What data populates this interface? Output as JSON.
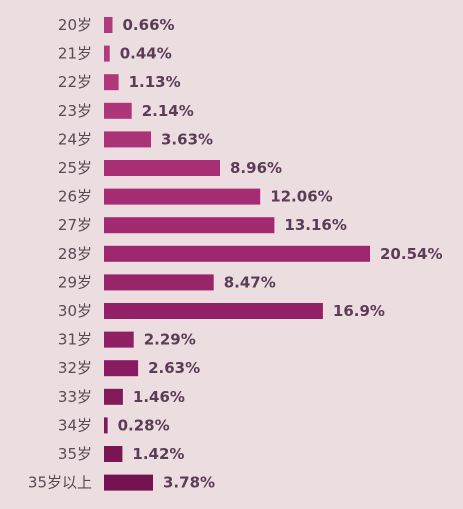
{
  "chart_data": {
    "type": "bar",
    "orientation": "horizontal",
    "title": "",
    "xlabel": "",
    "ylabel": "",
    "grid": false,
    "xlim": [
      0,
      20.54
    ],
    "categories": [
      "20岁",
      "21岁",
      "22岁",
      "23岁",
      "24岁",
      "25岁",
      "26岁",
      "27岁",
      "28岁",
      "29岁",
      "30岁",
      "31岁",
      "32岁",
      "33岁",
      "34岁",
      "35岁",
      "35岁以上"
    ],
    "values": [
      0.66,
      0.44,
      1.13,
      2.14,
      3.63,
      8.96,
      12.06,
      13.16,
      20.54,
      8.47,
      16.9,
      2.29,
      2.63,
      1.46,
      0.28,
      1.42,
      3.78
    ],
    "value_labels": [
      "0.66%",
      "0.44%",
      "1.13%",
      "2.14%",
      "3.63%",
      "8.96%",
      "12.06%",
      "13.16%",
      "20.54%",
      "8.47%",
      "16.9%",
      "2.29%",
      "2.63%",
      "1.46%",
      "0.28%",
      "1.42%",
      "3.78%"
    ],
    "colors": [
      "#b13a7c",
      "#b13a7c",
      "#b0377a",
      "#ae3579",
      "#ac3277",
      "#a92f75",
      "#a52c73",
      "#a12a70",
      "#9d276d",
      "#98246a",
      "#932167",
      "#8e1f63",
      "#891c60",
      "#84195c",
      "#7f1759",
      "#7a1455",
      "#751251"
    ]
  }
}
